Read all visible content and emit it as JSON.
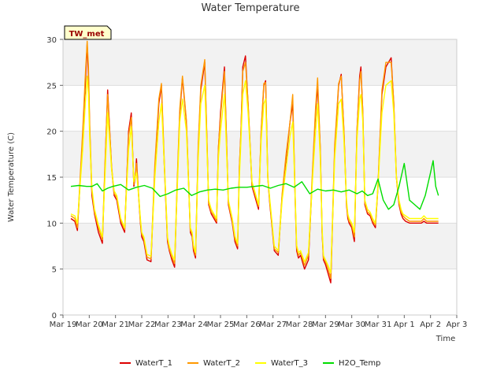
{
  "chart_data": {
    "type": "line",
    "title": "Water Temperature",
    "xlabel": "Time",
    "ylabel": "Water Temperature (C)",
    "ylim": [
      0,
      30
    ],
    "xlim": [
      0,
      15
    ],
    "yticks": [
      0,
      5,
      10,
      15,
      20,
      25,
      30
    ],
    "xticks": [
      {
        "pos": 0,
        "label": "Mar 19"
      },
      {
        "pos": 1,
        "label": "Mar 20"
      },
      {
        "pos": 2,
        "label": "Mar 21"
      },
      {
        "pos": 3,
        "label": "Mar 22"
      },
      {
        "pos": 4,
        "label": "Mar 23"
      },
      {
        "pos": 5,
        "label": "Mar 24"
      },
      {
        "pos": 6,
        "label": "Mar 25"
      },
      {
        "pos": 7,
        "label": "Mar 26"
      },
      {
        "pos": 8,
        "label": "Mar 27"
      },
      {
        "pos": 9,
        "label": "Mar 28"
      },
      {
        "pos": 10,
        "label": "Mar 29"
      },
      {
        "pos": 11,
        "label": "Mar 30"
      },
      {
        "pos": 12,
        "label": "Mar 31"
      },
      {
        "pos": 13,
        "label": "Apr 1"
      },
      {
        "pos": 14,
        "label": "Apr 2"
      },
      {
        "pos": 15,
        "label": "Apr 3"
      }
    ],
    "annotation": "TW_met",
    "background_bands": true,
    "series": [
      {
        "name": "WaterT_1",
        "color": "#dd0000",
        "x": [
          0.3,
          0.45,
          0.55,
          0.75,
          0.85,
          0.92,
          0.97,
          1.02,
          1.1,
          1.2,
          1.35,
          1.5,
          1.6,
          1.7,
          1.85,
          1.95,
          2.05,
          2.2,
          2.35,
          2.5,
          2.6,
          2.7,
          2.75,
          2.8,
          2.88,
          2.95,
          3.0,
          3.08,
          3.2,
          3.35,
          3.5,
          3.65,
          3.75,
          3.85,
          3.92,
          3.98,
          4.05,
          4.15,
          4.25,
          4.35,
          4.45,
          4.55,
          4.7,
          4.85,
          4.92,
          4.97,
          5.05,
          5.15,
          5.25,
          5.4,
          5.55,
          5.65,
          5.75,
          5.85,
          5.92,
          6.0,
          6.15,
          6.3,
          6.45,
          6.55,
          6.65,
          6.72,
          6.78,
          6.85,
          6.95,
          7.05,
          7.2,
          7.35,
          7.45,
          7.55,
          7.65,
          7.72,
          7.8,
          7.88,
          7.95,
          8.05,
          8.2,
          8.35,
          8.5,
          8.65,
          8.75,
          8.85,
          8.9,
          8.97,
          9.05,
          9.2,
          9.35,
          9.5,
          9.62,
          9.7,
          9.8,
          9.87,
          9.92,
          10.0,
          10.1,
          10.2,
          10.35,
          10.5,
          10.6,
          10.7,
          10.8,
          10.85,
          10.9,
          11.0,
          11.1,
          11.2,
          11.3,
          11.35,
          11.42,
          11.5,
          11.6,
          11.7,
          11.8,
          11.9,
          12.0,
          12.15,
          12.3,
          12.5,
          12.6,
          12.7,
          12.8,
          12.88,
          12.95,
          13.05,
          13.2,
          13.35,
          13.5,
          13.65,
          13.75,
          13.85,
          13.9,
          13.95,
          14.05,
          14.15,
          14.3
        ],
        "y": [
          10.5,
          10.2,
          9.2,
          19.5,
          25.0,
          29.5,
          26.0,
          20.0,
          13.0,
          11.0,
          9.0,
          7.8,
          16.0,
          24.5,
          16.0,
          13.0,
          12.5,
          10.0,
          9.0,
          20.0,
          22.0,
          14.0,
          15.0,
          17.0,
          13.0,
          10.0,
          8.5,
          8.0,
          6.0,
          5.8,
          16.0,
          23.0,
          25.0,
          17.0,
          12.0,
          8.0,
          7.0,
          6.0,
          5.2,
          14.0,
          22.0,
          25.8,
          21.0,
          9.0,
          8.5,
          7.0,
          6.2,
          18.0,
          24.5,
          27.5,
          12.0,
          11.0,
          10.5,
          10.0,
          18.0,
          22.0,
          27.0,
          12.0,
          10.0,
          8.0,
          7.2,
          16.0,
          20.0,
          27.0,
          28.2,
          23.0,
          14.0,
          12.5,
          11.5,
          20.0,
          25.0,
          25.5,
          15.0,
          12.0,
          10.0,
          7.0,
          6.5,
          13.0,
          17.0,
          21.0,
          23.0,
          12.0,
          7.0,
          6.2,
          6.5,
          5.0,
          6.0,
          15.0,
          22.0,
          25.0,
          18.0,
          9.0,
          6.0,
          5.5,
          4.5,
          3.5,
          18.0,
          25.0,
          26.2,
          20.0,
          12.0,
          10.5,
          10.0,
          9.5,
          8.0,
          20.0,
          26.0,
          27.0,
          22.0,
          12.0,
          11.0,
          10.8,
          10.0,
          9.5,
          14.0,
          24.0,
          27.0,
          28.0,
          23.0,
          15.0,
          12.0,
          11.0,
          10.5,
          10.2,
          10.0,
          10.0,
          10.0,
          10.0,
          10.2,
          10.0,
          10.0,
          10.0,
          10.0,
          10.0,
          10.0
        ]
      },
      {
        "name": "WaterT_2",
        "color": "#ff9900",
        "x": [
          0.3,
          0.45,
          0.55,
          0.75,
          0.85,
          0.92,
          0.97,
          1.02,
          1.1,
          1.2,
          1.35,
          1.5,
          1.6,
          1.7,
          1.85,
          1.95,
          2.05,
          2.2,
          2.35,
          2.5,
          2.6,
          2.7,
          2.75,
          2.8,
          2.88,
          2.95,
          3.0,
          3.08,
          3.2,
          3.35,
          3.5,
          3.65,
          3.75,
          3.85,
          3.92,
          3.98,
          4.05,
          4.15,
          4.25,
          4.35,
          4.45,
          4.55,
          4.7,
          4.85,
          4.92,
          4.97,
          5.05,
          5.15,
          5.25,
          5.4,
          5.55,
          5.65,
          5.75,
          5.85,
          5.92,
          6.0,
          6.15,
          6.3,
          6.45,
          6.55,
          6.65,
          6.72,
          6.78,
          6.85,
          6.95,
          7.05,
          7.2,
          7.35,
          7.45,
          7.55,
          7.65,
          7.72,
          7.8,
          7.88,
          7.95,
          8.05,
          8.2,
          8.35,
          8.5,
          8.65,
          8.75,
          8.85,
          8.9,
          8.97,
          9.05,
          9.2,
          9.35,
          9.5,
          9.62,
          9.7,
          9.8,
          9.87,
          9.92,
          10.0,
          10.1,
          10.2,
          10.35,
          10.5,
          10.6,
          10.7,
          10.8,
          10.85,
          10.9,
          11.0,
          11.1,
          11.2,
          11.3,
          11.35,
          11.42,
          11.5,
          11.6,
          11.7,
          11.8,
          11.9,
          12.0,
          12.15,
          12.3,
          12.5,
          12.6,
          12.7,
          12.8,
          12.88,
          12.95,
          13.05,
          13.2,
          13.35,
          13.5,
          13.65,
          13.75,
          13.85,
          13.9,
          13.95,
          14.05,
          14.15,
          14.3
        ],
        "y": [
          10.8,
          10.5,
          9.5,
          20.0,
          26.0,
          29.8,
          27.0,
          20.5,
          13.5,
          11.2,
          9.5,
          8.2,
          16.5,
          24.0,
          16.2,
          13.2,
          12.8,
          10.3,
          9.3,
          19.5,
          21.5,
          14.2,
          15.2,
          16.5,
          13.2,
          10.2,
          8.8,
          8.3,
          6.3,
          6.1,
          16.5,
          23.5,
          25.2,
          17.5,
          12.3,
          8.3,
          7.2,
          6.3,
          5.6,
          14.5,
          22.5,
          26.0,
          21.2,
          9.2,
          8.8,
          7.3,
          6.5,
          18.5,
          25.0,
          27.8,
          12.2,
          11.2,
          10.8,
          10.2,
          18.2,
          21.5,
          26.5,
          12.2,
          10.2,
          8.3,
          7.5,
          16.2,
          20.0,
          26.5,
          27.5,
          23.2,
          14.2,
          12.8,
          11.8,
          20.2,
          25.2,
          25.3,
          15.2,
          12.2,
          10.2,
          7.2,
          6.8,
          13.2,
          17.5,
          21.0,
          24.0,
          12.2,
          7.3,
          6.5,
          6.8,
          5.4,
          6.5,
          15.5,
          22.5,
          25.8,
          18.2,
          9.2,
          6.2,
          5.8,
          5.0,
          4.0,
          18.5,
          25.2,
          26.0,
          20.2,
          12.2,
          10.8,
          10.2,
          9.8,
          8.5,
          20.2,
          25.5,
          26.5,
          22.2,
          12.2,
          11.2,
          11.0,
          10.2,
          9.8,
          14.2,
          24.5,
          27.5,
          27.5,
          23.2,
          15.2,
          12.2,
          11.2,
          10.8,
          10.5,
          10.2,
          10.2,
          10.2,
          10.2,
          10.5,
          10.2,
          10.2,
          10.2,
          10.2,
          10.2,
          10.2
        ]
      },
      {
        "name": "WaterT_3",
        "color": "#ffff00",
        "x": [
          0.3,
          0.45,
          0.55,
          0.75,
          0.85,
          0.92,
          0.97,
          1.02,
          1.1,
          1.2,
          1.35,
          1.5,
          1.6,
          1.7,
          1.85,
          1.95,
          2.05,
          2.2,
          2.35,
          2.5,
          2.6,
          2.7,
          2.75,
          2.8,
          2.88,
          2.95,
          3.0,
          3.08,
          3.2,
          3.35,
          3.5,
          3.65,
          3.75,
          3.85,
          3.92,
          3.98,
          4.05,
          4.15,
          4.25,
          4.35,
          4.45,
          4.55,
          4.7,
          4.85,
          4.92,
          4.97,
          5.05,
          5.15,
          5.25,
          5.4,
          5.55,
          5.65,
          5.75,
          5.85,
          5.92,
          6.0,
          6.15,
          6.3,
          6.45,
          6.55,
          6.65,
          6.72,
          6.78,
          6.85,
          6.95,
          7.05,
          7.2,
          7.35,
          7.45,
          7.55,
          7.65,
          7.72,
          7.8,
          7.88,
          7.95,
          8.05,
          8.2,
          8.35,
          8.5,
          8.65,
          8.75,
          8.85,
          8.9,
          8.97,
          9.05,
          9.2,
          9.35,
          9.5,
          9.62,
          9.7,
          9.8,
          9.87,
          9.92,
          10.0,
          10.1,
          10.2,
          10.35,
          10.5,
          10.6,
          10.7,
          10.8,
          10.85,
          10.9,
          11.0,
          11.1,
          11.2,
          11.3,
          11.35,
          11.42,
          11.5,
          11.6,
          11.7,
          11.8,
          11.9,
          12.0,
          12.15,
          12.3,
          12.5,
          12.6,
          12.7,
          12.8,
          12.88,
          12.95,
          13.05,
          13.2,
          13.35,
          13.5,
          13.65,
          13.75,
          13.85,
          13.9,
          13.95,
          14.05,
          14.15,
          14.3
        ],
        "y": [
          11.0,
          10.8,
          10.0,
          18.0,
          23.0,
          26.0,
          24.0,
          19.0,
          13.8,
          11.5,
          9.8,
          8.5,
          15.0,
          22.0,
          15.8,
          13.5,
          13.0,
          10.5,
          9.5,
          18.0,
          20.5,
          14.5,
          15.0,
          15.5,
          13.0,
          10.5,
          9.0,
          8.5,
          6.6,
          6.4,
          15.0,
          21.0,
          23.0,
          17.0,
          12.5,
          8.5,
          7.5,
          6.6,
          6.0,
          13.5,
          21.0,
          23.5,
          20.0,
          9.5,
          9.0,
          7.6,
          6.8,
          17.0,
          23.0,
          25.0,
          12.5,
          11.5,
          11.0,
          10.5,
          17.0,
          20.0,
          24.0,
          12.5,
          10.5,
          8.6,
          7.8,
          15.0,
          19.0,
          24.0,
          25.5,
          22.0,
          14.5,
          13.0,
          12.0,
          19.0,
          23.0,
          23.5,
          15.0,
          12.5,
          10.5,
          7.5,
          7.0,
          12.5,
          16.0,
          19.5,
          21.0,
          12.5,
          7.6,
          6.8,
          7.0,
          5.8,
          6.8,
          14.5,
          20.0,
          23.0,
          17.0,
          9.5,
          6.5,
          6.0,
          5.4,
          4.6,
          17.0,
          23.0,
          23.5,
          19.0,
          12.5,
          11.0,
          10.5,
          10.0,
          9.0,
          19.0,
          23.5,
          24.0,
          21.0,
          12.5,
          11.5,
          11.2,
          10.5,
          10.0,
          14.0,
          22.0,
          25.0,
          25.5,
          22.0,
          15.0,
          12.5,
          11.5,
          11.0,
          10.8,
          10.5,
          10.5,
          10.5,
          10.5,
          10.8,
          10.5,
          10.5,
          10.5,
          10.5,
          10.5,
          10.5
        ]
      },
      {
        "name": "H2O_Temp",
        "color": "#00dd00",
        "x": [
          0.3,
          0.6,
          0.9,
          1.1,
          1.3,
          1.5,
          1.7,
          1.9,
          2.2,
          2.5,
          2.8,
          3.1,
          3.4,
          3.7,
          4.0,
          4.3,
          4.6,
          4.9,
          5.2,
          5.5,
          5.8,
          6.1,
          6.4,
          6.7,
          7.0,
          7.3,
          7.6,
          7.9,
          8.2,
          8.5,
          8.8,
          9.1,
          9.4,
          9.7,
          10.0,
          10.3,
          10.6,
          10.9,
          11.2,
          11.4,
          11.6,
          11.8,
          12.0,
          12.2,
          12.4,
          12.6,
          12.8,
          13.0,
          13.2,
          13.4,
          13.6,
          13.8,
          14.0,
          14.1,
          14.2,
          14.3
        ],
        "y": [
          14.0,
          14.1,
          14.0,
          14.0,
          14.3,
          13.5,
          13.8,
          14.0,
          14.2,
          13.6,
          13.9,
          14.1,
          13.8,
          12.9,
          13.2,
          13.6,
          13.8,
          13.0,
          13.4,
          13.6,
          13.7,
          13.6,
          13.8,
          13.9,
          13.9,
          14.0,
          14.1,
          13.8,
          14.1,
          14.3,
          13.9,
          14.5,
          13.2,
          13.7,
          13.5,
          13.6,
          13.4,
          13.6,
          13.2,
          13.5,
          13.0,
          13.2,
          14.8,
          12.5,
          11.5,
          12.0,
          14.0,
          16.5,
          12.5,
          12.0,
          11.5,
          13.0,
          15.5,
          16.8,
          14.0,
          13.0
        ]
      }
    ]
  },
  "legend": {
    "items": [
      {
        "label": "WaterT_1",
        "color": "#dd0000"
      },
      {
        "label": "WaterT_2",
        "color": "#ff9900"
      },
      {
        "label": "WaterT_3",
        "color": "#ffff00"
      },
      {
        "label": "H2O_Temp",
        "color": "#00dd00"
      }
    ]
  }
}
